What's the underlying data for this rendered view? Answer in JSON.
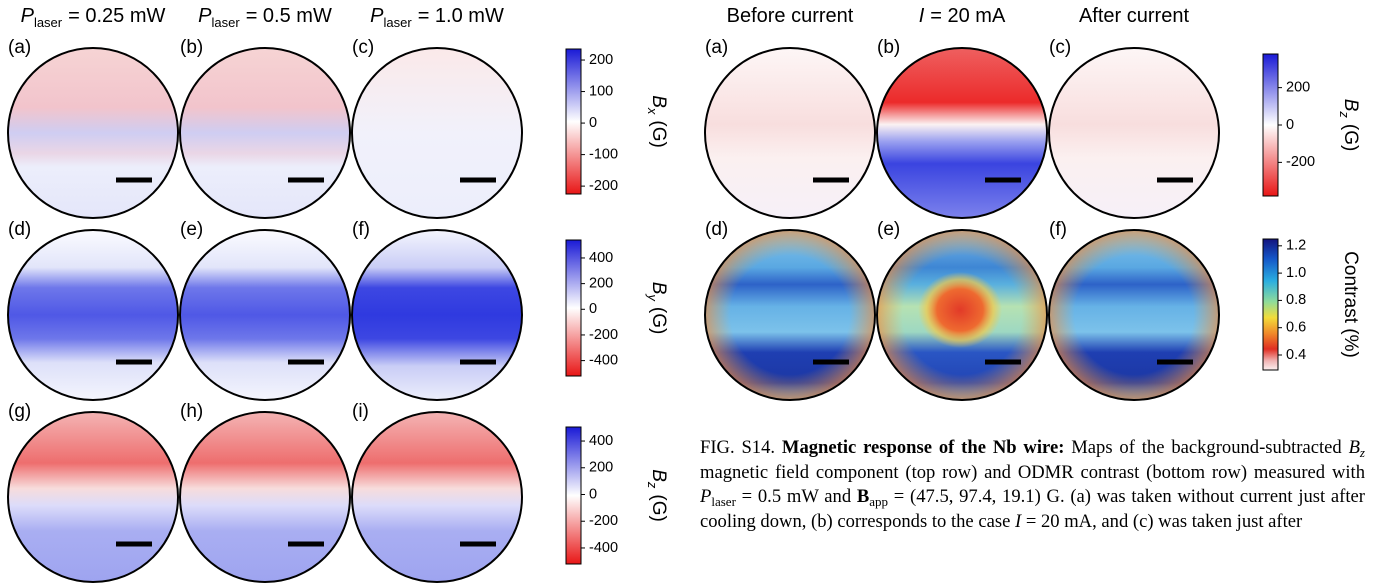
{
  "left": {
    "columns": [
      {
        "symbol": "P",
        "subscript": "laser",
        "value": "= 0.25 mW"
      },
      {
        "symbol": "P",
        "subscript": "laser",
        "value": "= 0.5 mW"
      },
      {
        "symbol": "P",
        "subscript": "laser",
        "value": "= 1.0 mW"
      }
    ],
    "panels": [
      "(a)",
      "(b)",
      "(c)",
      "(d)",
      "(e)",
      "(f)",
      "(g)",
      "(h)",
      "(i)"
    ],
    "colorbars": [
      {
        "symbol": "B",
        "subscript": "x",
        "unit": "(G)",
        "lim": [
          -225,
          235
        ],
        "ticks": [
          200,
          100,
          0,
          -100,
          -200
        ]
      },
      {
        "symbol": "B",
        "subscript": "y",
        "unit": "(G)",
        "lim": [
          -520,
          540
        ],
        "ticks": [
          400,
          200,
          0,
          -200,
          -400
        ]
      },
      {
        "symbol": "B",
        "subscript": "z",
        "unit": "(G)",
        "lim": [
          -520,
          505
        ],
        "ticks": [
          400,
          200,
          0,
          -200,
          -400
        ]
      }
    ]
  },
  "right": {
    "columns": [
      {
        "text": "Before current"
      },
      {
        "symbol": "I",
        "value": "= 20 mA"
      },
      {
        "text": "After current"
      }
    ],
    "panels": [
      "(a)",
      "(b)",
      "(c)",
      "(d)",
      "(e)",
      "(f)"
    ],
    "colorbars": [
      {
        "symbol": "B",
        "subscript": "z",
        "unit": "(G)",
        "lim": [
          -380,
          380
        ],
        "ticks": [
          200,
          0,
          -200
        ]
      },
      {
        "label": "Contrast (%)",
        "lim": [
          0.29,
          1.25
        ],
        "ticks": [
          1.2,
          {
            "value": 1,
            "label": "1.0"
          },
          0.8,
          0.6,
          0.4
        ]
      }
    ]
  },
  "caption": {
    "label": "FIG. S14.",
    "heading": "Magnetic response of the Nb wire:",
    "segments": [
      "Maps of the background-subtracted ",
      "B",
      "z",
      " magnetic field component (top row) and ODMR contrast (bottom row) measured with ",
      "P",
      "laser",
      " = 0.5 mW and ",
      "B",
      "app",
      " = (47.5, 97.4, 19.1) G. (a) was taken without current just after cooling down, (b) corresponds to the case ",
      "I",
      " = 20 mA, and (c) was taken just after"
    ]
  }
}
